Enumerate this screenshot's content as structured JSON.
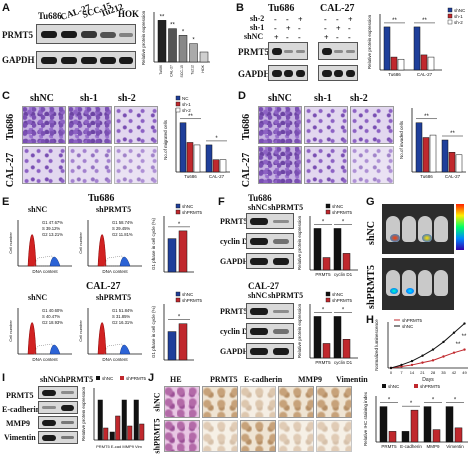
{
  "panelA": {
    "letter": "A",
    "lanes": [
      "Tu686",
      "CAL-27",
      "SCC-15",
      "Tu212",
      "HOK"
    ],
    "rows": [
      "PRMT5",
      "GAPDH"
    ],
    "ylabel": "Relative protein expression",
    "sig": [
      "**",
      "**",
      "*",
      "*"
    ]
  },
  "panelB": {
    "letter": "B",
    "groups": [
      "Tu686",
      "CAL-27"
    ],
    "conditions": [
      "sh-2",
      "sh-1",
      "shNC"
    ],
    "signs": [
      "-",
      "-",
      "+",
      "-",
      "-",
      "+",
      "-",
      "+",
      "-",
      "-",
      "+",
      "-",
      "+",
      "-",
      "-",
      "+",
      "-",
      "-"
    ],
    "rows": [
      "PRMT5",
      "GAPDH"
    ],
    "legend": [
      "shNC",
      "sh-1",
      "sh-2"
    ],
    "ylabel": "Relative protein expression",
    "sig": [
      "**",
      "**"
    ]
  },
  "panelC": {
    "letter": "C",
    "cols": [
      "shNC",
      "sh-1",
      "sh-2"
    ],
    "rows": [
      "Tu686",
      "CAL-27"
    ],
    "legend": [
      "NC",
      "sh-1",
      "sh-2"
    ],
    "ylabel": "No.of migrated cells",
    "sig": [
      "**",
      "*"
    ]
  },
  "panelD": {
    "letter": "D",
    "cols": [
      "shNC",
      "sh-1",
      "sh-2"
    ],
    "rows": [
      "Tu686",
      "CAL-27"
    ],
    "ylabel": "No.of invaded cells",
    "sig": [
      "**",
      "**"
    ]
  },
  "panelE": {
    "letter": "E",
    "groups": [
      "Tu686",
      "CAL-27"
    ],
    "cols": [
      "shNC",
      "shPRMT5"
    ],
    "stats_tu686_shnc": [
      "G1 47.67%",
      "S 39.12%",
      "G2 13.21%"
    ],
    "stats_tu686_sh": [
      "G1 58.74%",
      "S 29.45%",
      "G2 11.81%"
    ],
    "stats_cal_shnc": [
      "G1 40.60%",
      "S 40.47%",
      "G2 18.93%"
    ],
    "stats_cal_sh": [
      "G1 51.84%",
      "S 31.85%",
      "G2 16.31%"
    ],
    "xlabel": "DNA content",
    "ylabel": "Cell number",
    "legend": [
      "shNC",
      "shPRMT5"
    ],
    "chart_ylabel": "G1 phase in cell cycle (%)",
    "sig": [
      "*",
      "*"
    ]
  },
  "panelF": {
    "letter": "F",
    "groups": [
      "Tu686",
      "CAL-27"
    ],
    "cols": [
      "shNC",
      "shPRMT5"
    ],
    "rows": [
      "PRMT5",
      "cyclin D1",
      "GAPDH"
    ],
    "legend": [
      "shNC",
      "shPRMT5"
    ],
    "xticks": [
      "PRMT5",
      "cyclin D1"
    ],
    "ylabel": "Relative protein expression",
    "sig": [
      "*",
      "*"
    ]
  },
  "panelG": {
    "letter": "G",
    "rows": [
      "shNC",
      "shPRMT5"
    ]
  },
  "panelH": {
    "letter": "H",
    "legend": [
      "shPRMT5",
      "shNC"
    ],
    "ylabel": "Normalized luminescence",
    "xlabel": "Days",
    "xticks": [
      "0",
      "7",
      "14",
      "21",
      "28",
      "35",
      "42",
      "49"
    ],
    "sig": [
      "**",
      "**"
    ]
  },
  "panelI": {
    "letter": "I",
    "cols": [
      "shNC",
      "shPRMT5"
    ],
    "rows": [
      "PRMT5",
      "E-cadherin",
      "MMP9",
      "Vimentin"
    ],
    "legend": [
      "shNC",
      "shPRMT5"
    ],
    "xticks": "PRMT5 E-cad MMP9 Vim",
    "ylabel": "Relative protein expression"
  },
  "panelJ": {
    "letter": "J",
    "cols": [
      "HE",
      "PRMT5",
      "E-cadherin",
      "MMP9",
      "Vimentin"
    ],
    "rows": [
      "shNC",
      "shPRMT5"
    ],
    "legend": [
      "shNC",
      "shPRMT5"
    ],
    "xticks": [
      "PRMT5",
      "E-cadherin",
      "MMP9",
      "Vimentin"
    ],
    "ylabel": "Relative IHC staining index",
    "sig": [
      "*",
      "*",
      "*",
      "*"
    ]
  },
  "colors": {
    "black": "#111111",
    "blue": "#1f3f9a",
    "red": "#c0282d",
    "grey": "#9a9a9a",
    "white": "#ffffff"
  },
  "chart_data": [
    {
      "type": "bar",
      "panel": "A",
      "categories": [
        "Tu686",
        "CAL-27",
        "SCC-15",
        "Tu212",
        "HOK"
      ],
      "values": [
        1.25,
        1.0,
        0.8,
        0.55,
        0.3
      ],
      "ylabel": "Relative protein expression"
    },
    {
      "type": "bar",
      "panel": "B",
      "categories": [
        "Tu686",
        "CAL-27"
      ],
      "series": [
        {
          "name": "shNC",
          "values": [
            1.0,
            1.0
          ]
        },
        {
          "name": "sh-1",
          "values": [
            0.3,
            0.35
          ]
        },
        {
          "name": "sh-2",
          "values": [
            0.25,
            0.3
          ]
        }
      ],
      "ylabel": "Relative protein expression"
    },
    {
      "type": "bar",
      "panel": "C",
      "categories": [
        "Tu686",
        "CAL-27"
      ],
      "series": [
        {
          "name": "NC",
          "values": [
            1.0,
            0.55
          ]
        },
        {
          "name": "sh-1",
          "values": [
            0.6,
            0.25
          ]
        },
        {
          "name": "sh-2",
          "values": [
            0.55,
            0.25
          ]
        }
      ],
      "ylabel": "No.of migrated cells"
    },
    {
      "type": "bar",
      "panel": "D",
      "categories": [
        "Tu686",
        "CAL-27"
      ],
      "series": [
        {
          "name": "NC",
          "values": [
            1.0,
            0.65
          ]
        },
        {
          "name": "sh-1",
          "values": [
            0.7,
            0.4
          ]
        },
        {
          "name": "sh-2",
          "values": [
            0.75,
            0.35
          ]
        }
      ],
      "ylabel": "No.of invaded cells"
    },
    {
      "type": "bar",
      "panel": "E-Tu686",
      "categories": [
        ""
      ],
      "series": [
        {
          "name": "shNC",
          "values": [
            47.67
          ]
        },
        {
          "name": "shPRMT5",
          "values": [
            58.74
          ]
        }
      ],
      "ylabel": "G1 phase in cell cycle (%)",
      "ylim": [
        0,
        80
      ]
    },
    {
      "type": "bar",
      "panel": "E-CAL-27",
      "categories": [
        ""
      ],
      "series": [
        {
          "name": "shNC",
          "values": [
            40.6
          ]
        },
        {
          "name": "shPRMT5",
          "values": [
            51.84
          ]
        }
      ],
      "ylabel": "G1 phase in cell cycle (%)",
      "ylim": [
        0,
        80
      ]
    },
    {
      "type": "bar",
      "panel": "F-Tu686",
      "categories": [
        "PRMT5",
        "cyclin D1"
      ],
      "series": [
        {
          "name": "shNC",
          "values": [
            1.0,
            1.0
          ]
        },
        {
          "name": "shPRMT5",
          "values": [
            0.3,
            0.4
          ]
        }
      ],
      "ylabel": "Relative protein expression"
    },
    {
      "type": "bar",
      "panel": "F-CAL-27",
      "categories": [
        "PRMT5",
        "cyclin D1"
      ],
      "series": [
        {
          "name": "shNC",
          "values": [
            1.0,
            1.0
          ]
        },
        {
          "name": "shPRMT5",
          "values": [
            0.35,
            0.45
          ]
        }
      ],
      "ylabel": "Relative protein expression"
    },
    {
      "type": "line",
      "panel": "H",
      "x": [
        0,
        7,
        14,
        21,
        28,
        35,
        42,
        49
      ],
      "series": [
        {
          "name": "shPRMT5",
          "values": [
            0,
            0.1,
            0.2,
            0.35,
            0.5,
            0.75,
            1.0,
            1.2
          ]
        },
        {
          "name": "shNC",
          "values": [
            0,
            0.2,
            0.45,
            0.8,
            1.2,
            1.7,
            2.3,
            2.9
          ]
        }
      ],
      "xlabel": "Days",
      "ylabel": "Normalized luminescence"
    },
    {
      "type": "bar",
      "panel": "I",
      "categories": [
        "PRMT5",
        "E-cad",
        "MMP9",
        "Vim"
      ],
      "series": [
        {
          "name": "shNC",
          "values": [
            1.0,
            0.2,
            1.0,
            1.0
          ]
        },
        {
          "name": "shPRMT5",
          "values": [
            0.3,
            0.6,
            0.35,
            0.4
          ]
        }
      ],
      "ylabel": "Relative protein expression"
    },
    {
      "type": "bar",
      "panel": "J",
      "categories": [
        "PRMT5",
        "E-cadherin",
        "MMP9",
        "Vimentin"
      ],
      "series": [
        {
          "name": "shNC",
          "values": [
            1.0,
            0.3,
            1.0,
            1.0
          ]
        },
        {
          "name": "shPRMT5",
          "values": [
            0.3,
            0.9,
            0.35,
            0.4
          ]
        }
      ],
      "ylabel": "Relative IHC staining index"
    }
  ]
}
